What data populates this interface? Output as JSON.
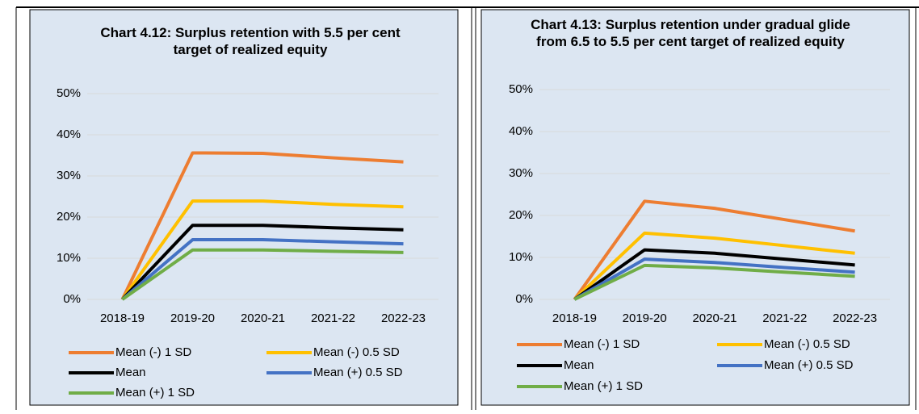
{
  "chart_data": [
    {
      "type": "line",
      "title": "Chart 4.12: Surplus retention with 5.5 per cent target of realized equity",
      "categories": [
        "2018-19",
        "2019-20",
        "2020-21",
        "2021-22",
        "2022-23"
      ],
      "ylim": [
        0,
        50
      ],
      "yticks": [
        {
          "value": 0,
          "label": "0%"
        },
        {
          "value": 10,
          "label": "10%"
        },
        {
          "value": 20,
          "label": "20%"
        },
        {
          "value": 30,
          "label": "30%"
        },
        {
          "value": 40,
          "label": "40%"
        },
        {
          "value": 50,
          "label": "50%"
        }
      ],
      "grid": true,
      "legend": "bottom",
      "series": [
        {
          "name": "Mean (-) 1 SD",
          "color": "#ed7d31",
          "values": [
            0,
            35.6,
            35.5,
            34.4,
            33.4
          ]
        },
        {
          "name": "Mean (-) 0.5 SD",
          "color": "#ffc000",
          "values": [
            0,
            23.9,
            23.9,
            23.1,
            22.5
          ]
        },
        {
          "name": "Mean",
          "color": "#000000",
          "values": [
            0,
            18,
            18,
            17.4,
            16.9
          ]
        },
        {
          "name": "Mean (+) 0.5 SD",
          "color": "#4472c4",
          "values": [
            0,
            14.5,
            14.5,
            14,
            13.5
          ]
        },
        {
          "name": "Mean (+) 1 SD",
          "color": "#70ad47",
          "values": [
            0,
            12,
            12,
            11.7,
            11.4
          ]
        }
      ]
    },
    {
      "type": "line",
      "title": "Chart 4.13: Surplus retention under gradual glide from 6.5 to 5.5 per cent target of realized equity",
      "categories": [
        "2018-19",
        "2019-20",
        "2020-21",
        "2021-22",
        "2022-23"
      ],
      "ylim": [
        0,
        50
      ],
      "yticks": [
        {
          "value": 0,
          "label": "0%"
        },
        {
          "value": 10,
          "label": "10%"
        },
        {
          "value": 20,
          "label": "20%"
        },
        {
          "value": 30,
          "label": "30%"
        },
        {
          "value": 40,
          "label": "40%"
        },
        {
          "value": 50,
          "label": "50%"
        }
      ],
      "grid": true,
      "legend": "bottom",
      "series": [
        {
          "name": "Mean (-) 1 SD",
          "color": "#ed7d31",
          "values": [
            0,
            23.4,
            21.7,
            19,
            16.3
          ]
        },
        {
          "name": "Mean (-) 0.5 SD",
          "color": "#ffc000",
          "values": [
            0,
            15.8,
            14.6,
            12.8,
            11
          ]
        },
        {
          "name": "Mean",
          "color": "#000000",
          "values": [
            0,
            11.8,
            11,
            9.6,
            8.2
          ]
        },
        {
          "name": "Mean (+) 0.5 SD",
          "color": "#4472c4",
          "values": [
            0,
            9.6,
            8.8,
            7.6,
            6.5
          ]
        },
        {
          "name": "Mean (+) 1 SD",
          "color": "#70ad47",
          "values": [
            0,
            8.1,
            7.5,
            6.5,
            5.5
          ]
        }
      ]
    }
  ]
}
